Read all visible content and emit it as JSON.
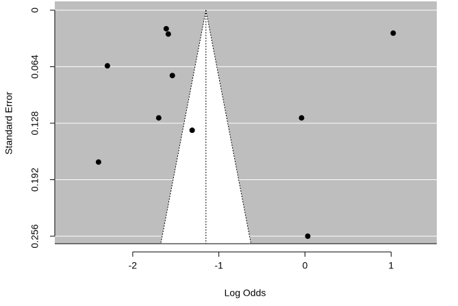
{
  "chart_data": {
    "type": "funnel",
    "x_label": "Log Odds",
    "y_label": "Standard Error",
    "x": [
      -1.611,
      -1.587,
      1.024,
      -2.294,
      -1.54,
      -1.698,
      -0.04,
      -1.31,
      -2.397,
      0.032
    ],
    "values": [
      0.021,
      0.027,
      0.026,
      0.063,
      0.074,
      0.122,
      0.122,
      0.136,
      0.172,
      0.256
    ],
    "funnel_center": -1.15,
    "funnel_base": [
      -1.675,
      -0.627
    ],
    "xlim": [
      -2.905,
      1.53
    ],
    "ylim": [
      -0.01,
      0.2645
    ],
    "xticks": [
      -2,
      -1,
      0,
      1
    ],
    "yticks": [
      0,
      0.064,
      0.128,
      0.192,
      0.256
    ],
    "y_reversed": true,
    "grid": true,
    "background_color": "#bebebe",
    "funnel_color": "#ffffff",
    "point_color": "#000000"
  }
}
